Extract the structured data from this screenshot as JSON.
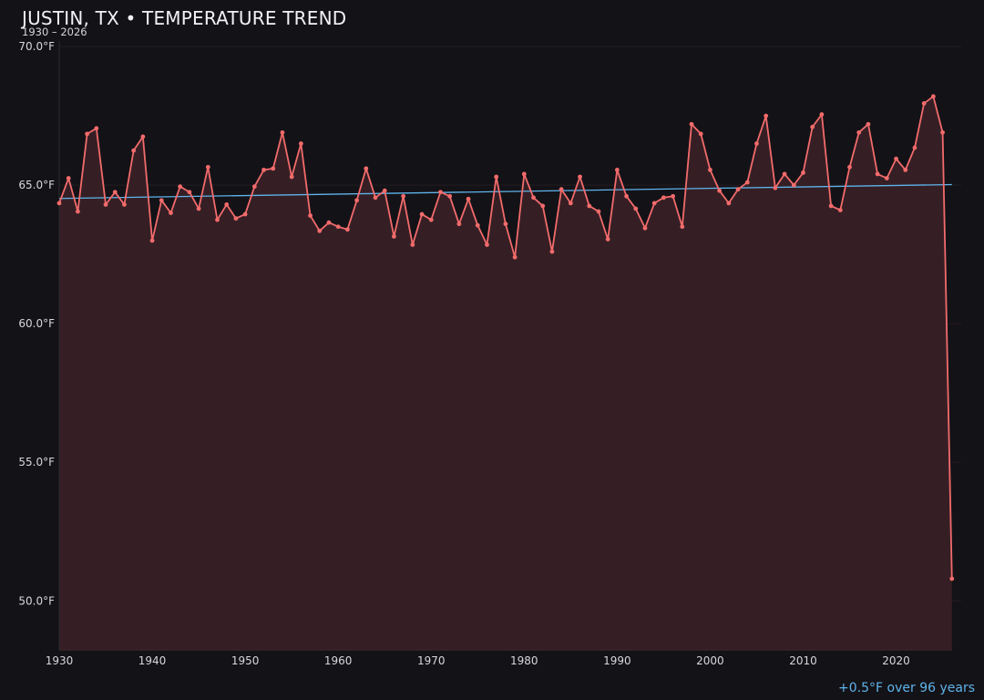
{
  "header": {
    "title": "JUSTIN, TX • TEMPERATURE TREND",
    "subtitle": "1930 – 2026"
  },
  "footer": {
    "trend_note": "+0.5°F over 96 years"
  },
  "colors": {
    "background": "#131217",
    "series_line": "#f26b6b",
    "series_fill": "#351f25",
    "trend_line": "#5fb4ea",
    "grid": "#241c22"
  },
  "chart_data": {
    "type": "line",
    "title": "JUSTIN, TX • TEMPERATURE TREND",
    "subtitle": "1930 – 2026",
    "xlabel": "",
    "ylabel": "",
    "xlim": [
      1930,
      2027
    ],
    "ylim": [
      48.2,
      70.2
    ],
    "grid": true,
    "area_fill": true,
    "x_ticks": [
      1930,
      1940,
      1950,
      1960,
      1970,
      1980,
      1990,
      2000,
      2010,
      2020
    ],
    "y_ticks": [
      {
        "value": 50,
        "label": "50.0°F"
      },
      {
        "value": 55,
        "label": "55.0°F"
      },
      {
        "value": 60,
        "label": "60.0°F"
      },
      {
        "value": 65,
        "label": "65.0°F"
      },
      {
        "value": 70,
        "label": "70.0°F"
      }
    ],
    "series": [
      {
        "x": [
          1930,
          1931,
          1932,
          1933,
          1934,
          1935,
          1936,
          1937,
          1938,
          1939,
          1940,
          1941,
          1942,
          1943,
          1944,
          1945,
          1946,
          1947,
          1948,
          1949,
          1950,
          1951,
          1952,
          1953,
          1954,
          1955,
          1956,
          1957,
          1958,
          1959,
          1960,
          1961,
          1962,
          1963,
          1964,
          1965,
          1966,
          1967,
          1968,
          1969,
          1970,
          1971,
          1972,
          1973,
          1974,
          1975,
          1976,
          1977,
          1978,
          1979,
          1980,
          1981,
          1982,
          1983,
          1984,
          1985,
          1986,
          1987,
          1988,
          1989,
          1990,
          1991,
          1992,
          1993,
          1994,
          1995,
          1996,
          1997,
          1998,
          1999,
          2000,
          2001,
          2002,
          2003,
          2004,
          2005,
          2006,
          2007,
          2008,
          2009,
          2010,
          2011,
          2012,
          2013,
          2014,
          2015,
          2016,
          2017,
          2018,
          2019,
          2020,
          2021,
          2022,
          2023,
          2024,
          2025,
          2026
        ],
        "values": [
          64.35,
          65.25,
          64.05,
          66.85,
          67.05,
          64.3,
          64.75,
          64.3,
          66.25,
          66.75,
          63.0,
          64.45,
          64.0,
          64.95,
          64.75,
          64.15,
          65.65,
          63.75,
          64.3,
          63.8,
          63.95,
          64.95,
          65.55,
          65.6,
          66.9,
          65.3,
          66.5,
          63.9,
          63.35,
          63.65,
          63.5,
          63.4,
          64.45,
          65.6,
          64.55,
          64.8,
          63.15,
          64.6,
          62.85,
          63.95,
          63.75,
          64.75,
          64.6,
          63.6,
          64.5,
          63.55,
          62.85,
          65.3,
          63.6,
          62.4,
          65.4,
          64.55,
          64.25,
          62.6,
          64.85,
          64.35,
          65.3,
          64.25,
          64.05,
          63.05,
          65.55,
          64.6,
          64.15,
          63.45,
          64.35,
          64.55,
          64.6,
          63.5,
          67.2,
          66.85,
          65.55,
          64.8,
          64.35,
          64.85,
          65.1,
          66.5,
          67.5,
          64.9,
          65.4,
          65.0,
          65.45,
          67.1,
          67.55,
          64.25,
          64.1,
          65.65,
          66.9,
          67.2,
          65.4,
          65.25,
          65.95,
          65.55,
          66.35,
          67.95,
          68.2,
          66.9,
          50.8
        ]
      }
    ],
    "trend": {
      "x": [
        1930,
        2026
      ],
      "values": [
        64.52,
        65.02
      ]
    }
  }
}
